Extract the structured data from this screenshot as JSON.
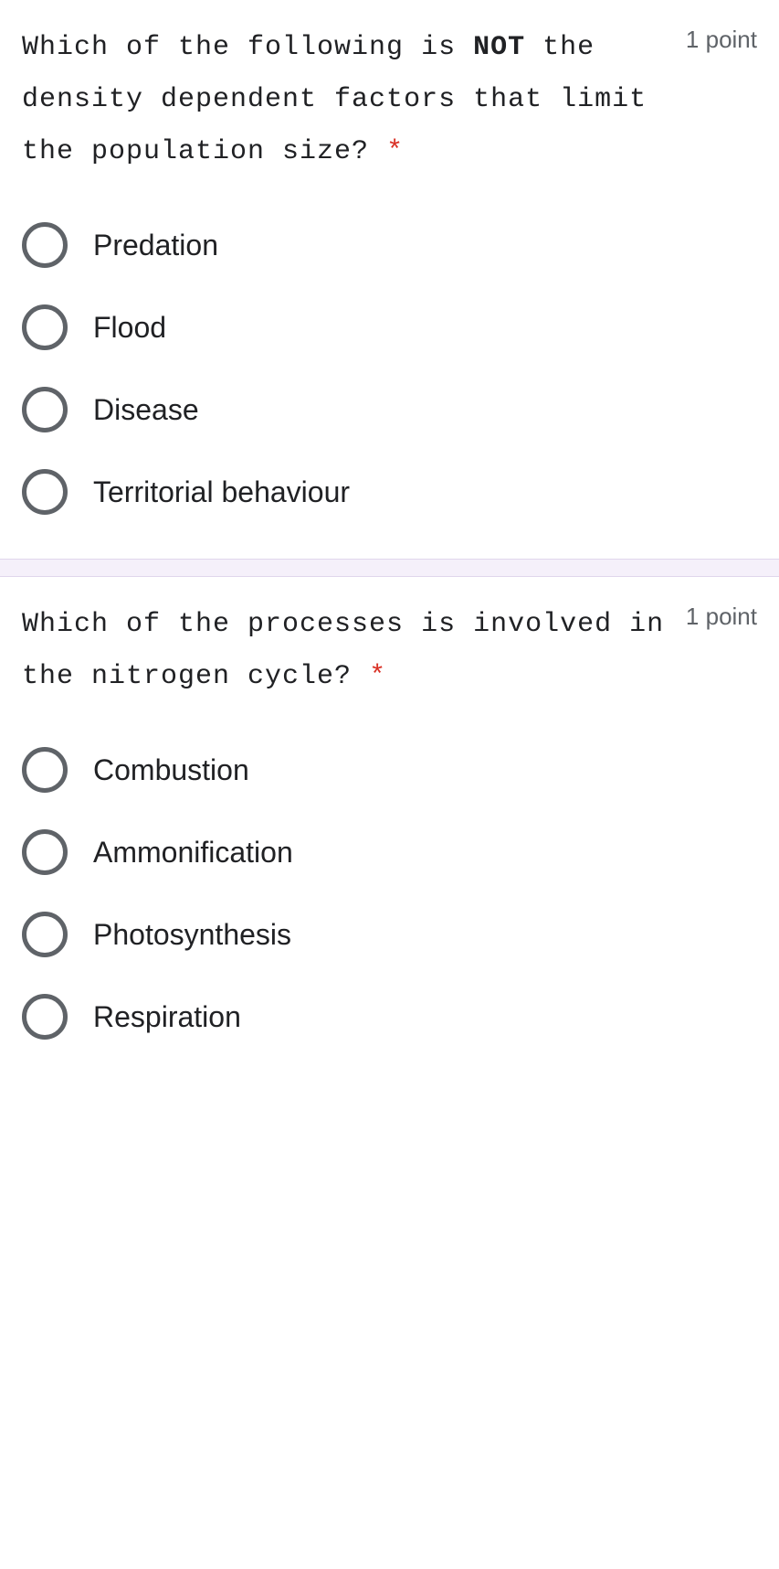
{
  "colors": {
    "background": "#ffffff",
    "divider_bg": "#f5f0fa",
    "divider_border": "#e0d6ec",
    "text_primary": "#202124",
    "text_secondary": "#5f6368",
    "required": "#d93025",
    "radio_border": "#5f6368"
  },
  "typography": {
    "question_font": "Courier New",
    "question_fontsize": 30,
    "option_font": "Arial",
    "option_fontsize": 32,
    "points_fontsize": 26
  },
  "questions": [
    {
      "prompt_pre": "Which of the following is ",
      "prompt_bold": "NOT",
      "prompt_post": " the density dependent factors that limit the population size?",
      "required": true,
      "points": "1 point",
      "options": [
        {
          "label": "Predation"
        },
        {
          "label": "Flood"
        },
        {
          "label": "Disease"
        },
        {
          "label": "Territorial behaviour"
        }
      ]
    },
    {
      "prompt_pre": "Which of the processes is involved in the nitrogen cycle?",
      "prompt_bold": "",
      "prompt_post": "",
      "required": true,
      "points": "1 point",
      "options": [
        {
          "label": "Combustion"
        },
        {
          "label": "Ammonification"
        },
        {
          "label": "Photosynthesis"
        },
        {
          "label": "Respiration"
        }
      ]
    }
  ]
}
